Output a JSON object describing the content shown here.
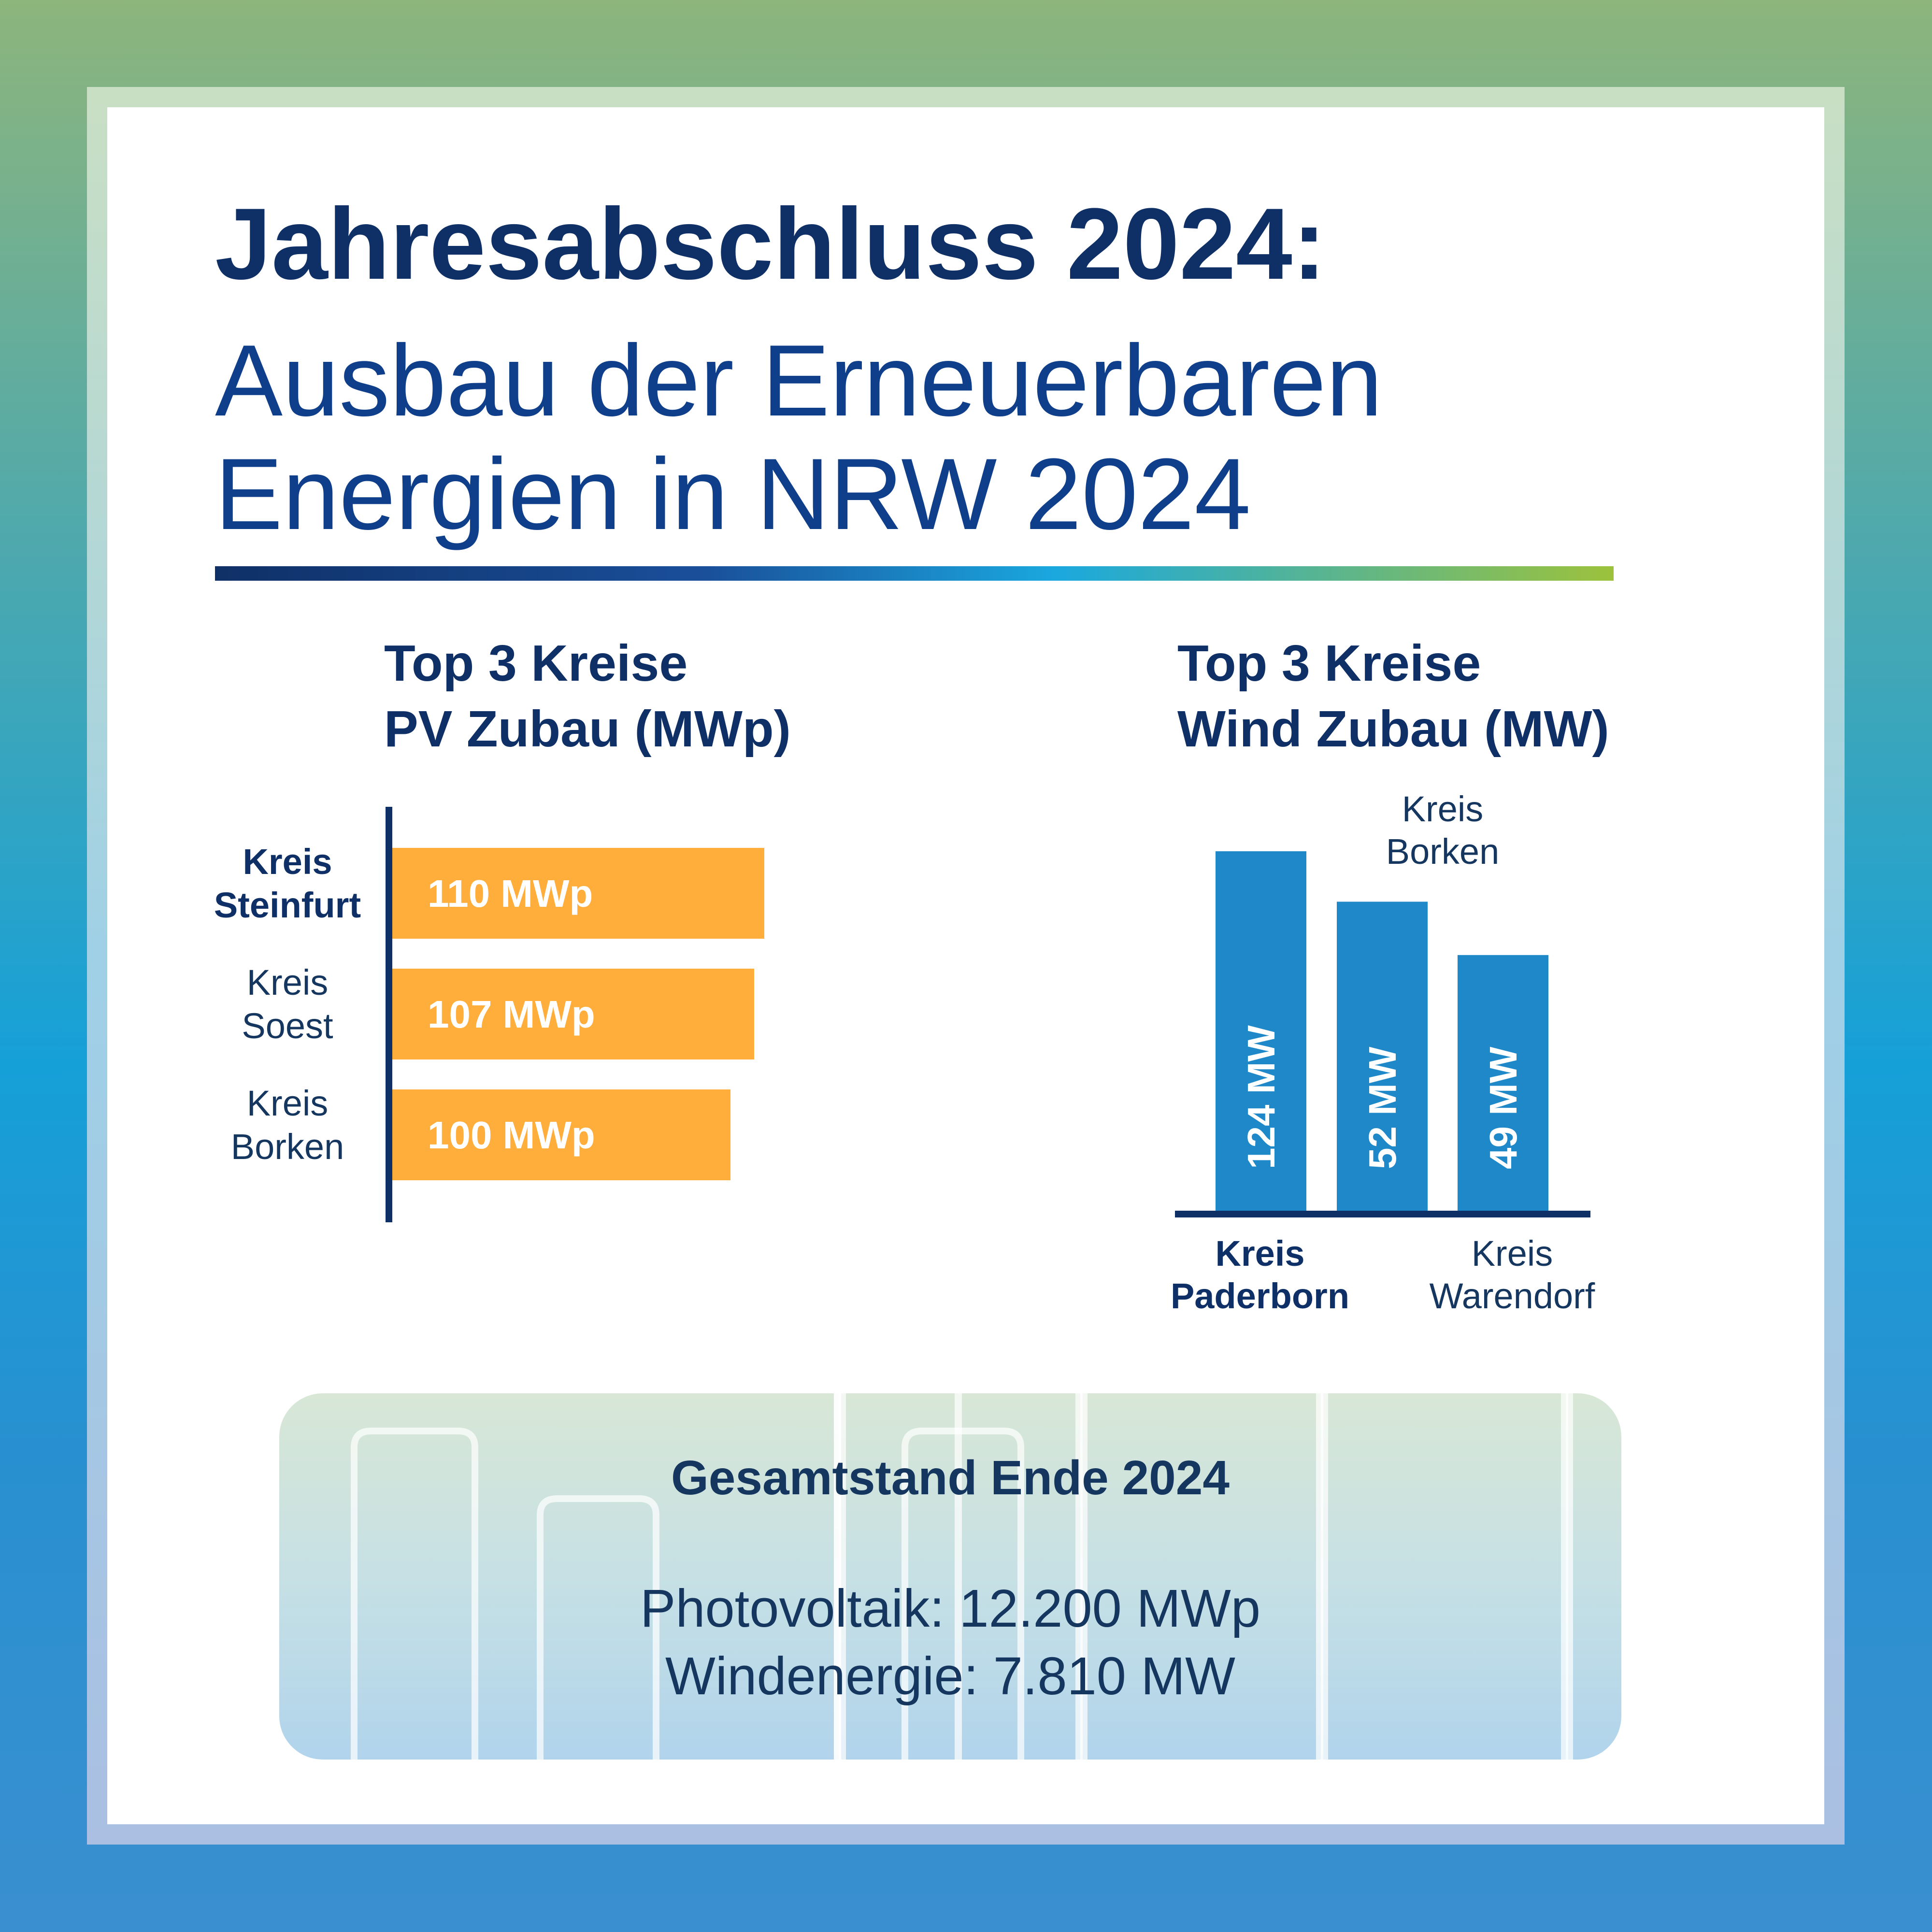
{
  "header": {
    "title_bold": "Jahresabschluss 2024:",
    "title_line1": "Ausbau der Erneuerbaren",
    "title_line2": "Energien in NRW 2024"
  },
  "chart_data": [
    {
      "type": "bar",
      "orientation": "horizontal",
      "heading_line1": "Top 3 Kreise",
      "heading_line2": "PV Zubau (MWp)",
      "unit": "MWp",
      "color": "#ffad3b",
      "categories": [
        [
          "Kreis",
          "Steinfurt"
        ],
        [
          "Kreis",
          "Soest"
        ],
        [
          "Kreis",
          "Borken"
        ]
      ],
      "values": [
        110,
        107,
        100
      ],
      "value_labels": [
        "110 MWp",
        "107 MWp",
        "100 MWp"
      ],
      "highlight": [
        true,
        false,
        false
      ]
    },
    {
      "type": "bar",
      "orientation": "vertical",
      "heading_line1": "Top 3 Kreise",
      "heading_line2": "Wind Zubau (MW)",
      "unit": "MW",
      "color": "#1f88c9",
      "categories": [
        [
          "Kreis",
          "Paderborn"
        ],
        [
          "Kreis",
          "Borken"
        ],
        [
          "Kreis",
          "Warendorf"
        ]
      ],
      "values": [
        124,
        52,
        49
      ],
      "value_labels": [
        "124 MW",
        "52 MW",
        "49 MW"
      ],
      "label_positions": [
        "bottom",
        "top",
        "bottom"
      ],
      "highlight": [
        true,
        false,
        false
      ]
    }
  ],
  "summary": {
    "title": "Gesamtstand Ende 2024",
    "pv": "Photovoltaik: 12.200 MWp",
    "wind": "Windenergie: 7.810 MW"
  },
  "colors": {
    "navy": "#0f3067",
    "label_blue": "#15365f",
    "pv_bar": "#ffad3b",
    "wind_bar": "#1f88c9"
  }
}
